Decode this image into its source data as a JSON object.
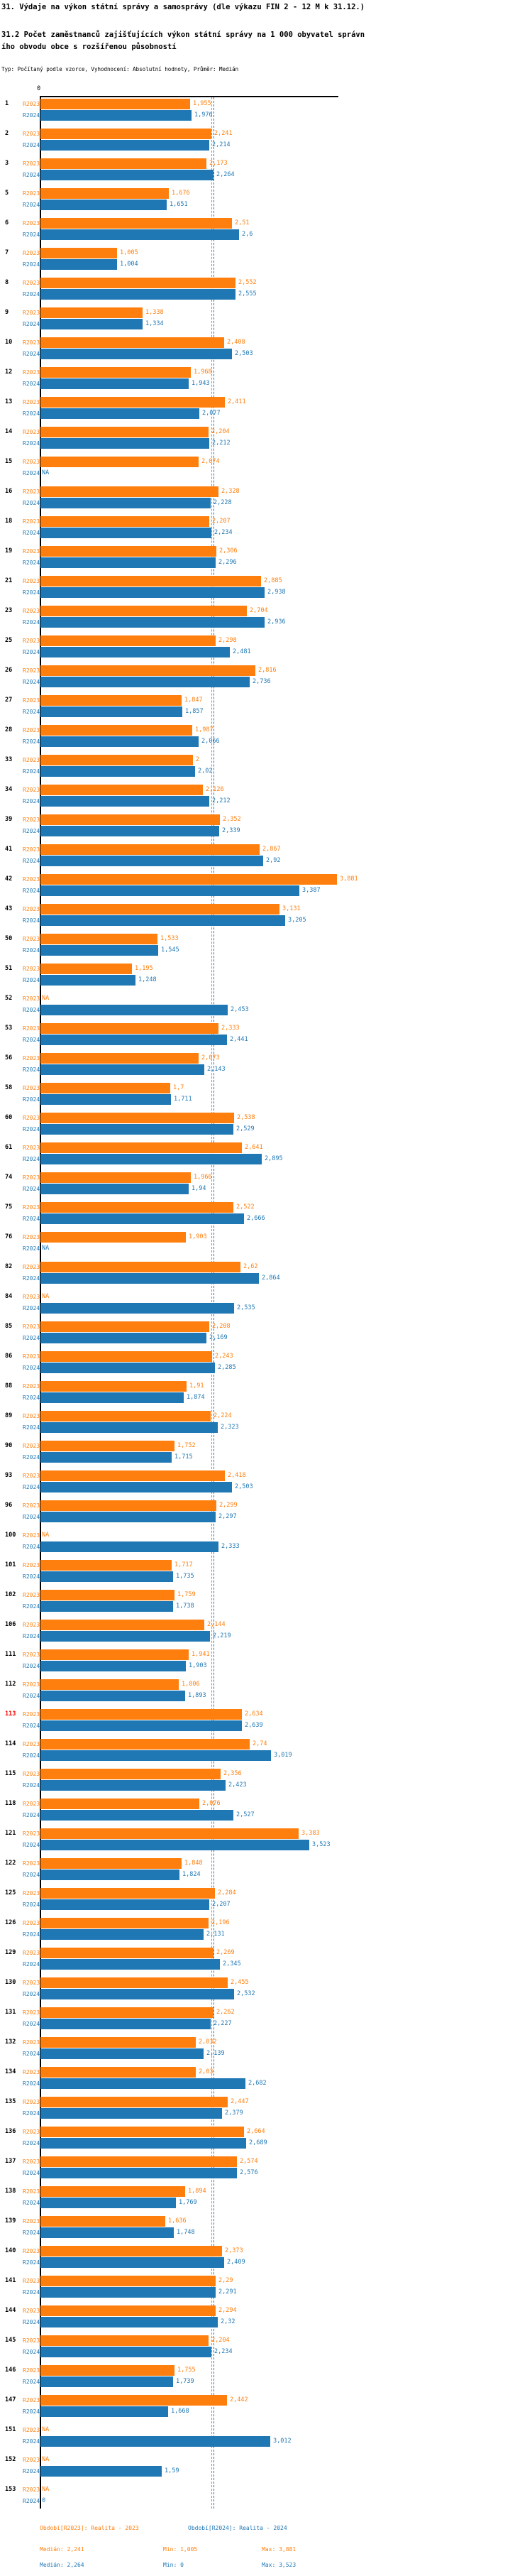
{
  "header": {
    "title": "31. Výdaje na výkon státní správy a samosprávy (dle výkazu FIN 2 - 12 M k 31.12.)",
    "subtitle_line1": "31.2 Počet zaměstnanců zajišťujících výkon státní správy na 1 000 obyvatel správn",
    "subtitle_line2": "ího obvodu obce s rozšířenou působností",
    "meta": "Typ: Počítaný podle vzorce, Vyhodnocení: Absolutní hodnoty, Průměr: Medián"
  },
  "chart_data": {
    "type": "bar",
    "orientation": "horizontal",
    "series": [
      "R2023",
      "R2024"
    ],
    "colors": {
      "R2023": "#FF7F0E",
      "R2024": "#1F77B4",
      "highlight_row": "#FF0000"
    },
    "axis": {
      "zero_label": "0",
      "xmax": 3.9,
      "grid": "off"
    },
    "medians": {
      "R2023": 2.241,
      "R2024": 2.264
    },
    "na_text": "NA",
    "highlight_rows": [
      "113"
    ],
    "rows": [
      [
        "1",
        "1,955",
        "1,976"
      ],
      [
        "2",
        "2,241",
        "2,214"
      ],
      [
        "3",
        "2,173",
        "2,264"
      ],
      [
        "5",
        "1,676",
        "1,651"
      ],
      [
        "6",
        "2,51",
        "2,6"
      ],
      [
        "7",
        "1,005",
        "1,004"
      ],
      [
        "8",
        "2,552",
        "2,555"
      ],
      [
        "9",
        "1,338",
        "1,334"
      ],
      [
        "10",
        "2,408",
        "2,503"
      ],
      [
        "12",
        "1,968",
        "1,943"
      ],
      [
        "13",
        "2,411",
        "2,077"
      ],
      [
        "14",
        "2,204",
        "2,212"
      ],
      [
        "15",
        "2,074",
        "NA"
      ],
      [
        "16",
        "2,328",
        "2,228"
      ],
      [
        "18",
        "2,207",
        "2,234"
      ],
      [
        "19",
        "2,306",
        "2,296"
      ],
      [
        "21",
        "2,885",
        "2,938"
      ],
      [
        "23",
        "2,704",
        "2,936"
      ],
      [
        "25",
        "2,298",
        "2,481"
      ],
      [
        "26",
        "2,816",
        "2,736"
      ],
      [
        "27",
        "1,847",
        "1,857"
      ],
      [
        "28",
        "1,987",
        "2,066"
      ],
      [
        "33",
        "2",
        "2,02"
      ],
      [
        "34",
        "2,126",
        "2,212"
      ],
      [
        "39",
        "2,352",
        "2,339"
      ],
      [
        "41",
        "2,867",
        "2,92"
      ],
      [
        "42",
        "3,881",
        "3,387"
      ],
      [
        "43",
        "3,131",
        "3,205"
      ],
      [
        "50",
        "1,533",
        "1,545"
      ],
      [
        "51",
        "1,195",
        "1,248"
      ],
      [
        "52",
        "NA",
        "2,453"
      ],
      [
        "53",
        "2,333",
        "2,441"
      ],
      [
        "56",
        "2,073",
        "2,143"
      ],
      [
        "58",
        "1,7",
        "1,711"
      ],
      [
        "60",
        "2,538",
        "2,529"
      ],
      [
        "61",
        "2,641",
        "2,895"
      ],
      [
        "74",
        "1,966",
        "1,94"
      ],
      [
        "75",
        "2,522",
        "2,666"
      ],
      [
        "76",
        "1,903",
        "NA"
      ],
      [
        "82",
        "2,62",
        "2,864"
      ],
      [
        "84",
        "NA",
        "2,535"
      ],
      [
        "85",
        "2,208",
        "2,169"
      ],
      [
        "86",
        "2,243",
        "2,285"
      ],
      [
        "88",
        "1,91",
        "1,874"
      ],
      [
        "89",
        "2,224",
        "2,323"
      ],
      [
        "90",
        "1,752",
        "1,715"
      ],
      [
        "93",
        "2,418",
        "2,503"
      ],
      [
        "96",
        "2,299",
        "2,297"
      ],
      [
        "100",
        "NA",
        "2,333"
      ],
      [
        "101",
        "1,717",
        "1,735"
      ],
      [
        "102",
        "1,759",
        "1,738"
      ],
      [
        "106",
        "2,144",
        "2,219"
      ],
      [
        "111",
        "1,941",
        "1,903"
      ],
      [
        "112",
        "1,806",
        "1,893"
      ],
      [
        "113",
        "2,634",
        "2,639"
      ],
      [
        "114",
        "2,74",
        "3,019"
      ],
      [
        "115",
        "2,356",
        "2,423"
      ],
      [
        "118",
        "2,076",
        "2,527"
      ],
      [
        "121",
        "3,383",
        "3,523"
      ],
      [
        "122",
        "1,848",
        "1,824"
      ],
      [
        "125",
        "2,284",
        "2,207"
      ],
      [
        "126",
        "2,196",
        "2,131"
      ],
      [
        "129",
        "2,269",
        "2,345"
      ],
      [
        "130",
        "2,455",
        "2,532"
      ],
      [
        "131",
        "2,262",
        "2,227"
      ],
      [
        "132",
        "2,032",
        "2,139"
      ],
      [
        "134",
        "2,03",
        "2,682"
      ],
      [
        "135",
        "2,447",
        "2,379"
      ],
      [
        "136",
        "2,664",
        "2,689"
      ],
      [
        "137",
        "2,574",
        "2,576"
      ],
      [
        "138",
        "1,894",
        "1,769"
      ],
      [
        "139",
        "1,636",
        "1,748"
      ],
      [
        "140",
        "2,373",
        "2,409"
      ],
      [
        "141",
        "2,29",
        "2,291"
      ],
      [
        "144",
        "2,294",
        "2,32"
      ],
      [
        "145",
        "2,204",
        "2,234"
      ],
      [
        "146",
        "1,755",
        "1,739"
      ],
      [
        "147",
        "2,442",
        "1,668"
      ],
      [
        "151",
        "NA",
        "3,012"
      ],
      [
        "152",
        "NA",
        "1,59"
      ],
      [
        "153",
        "NA",
        "0"
      ]
    ]
  },
  "legend": {
    "period_r2023": "Období[R2023]: Realita - 2023",
    "period_r2024": "Období[R2024]: Realita - 2024",
    "r2023": {
      "median": "Medián: 2,241",
      "min": "Min: 1,005",
      "max": "Max: 3,881"
    },
    "r2024": {
      "median": "Medián: 2,264",
      "min": "Min: 0",
      "max": "Max: 3,523"
    }
  }
}
